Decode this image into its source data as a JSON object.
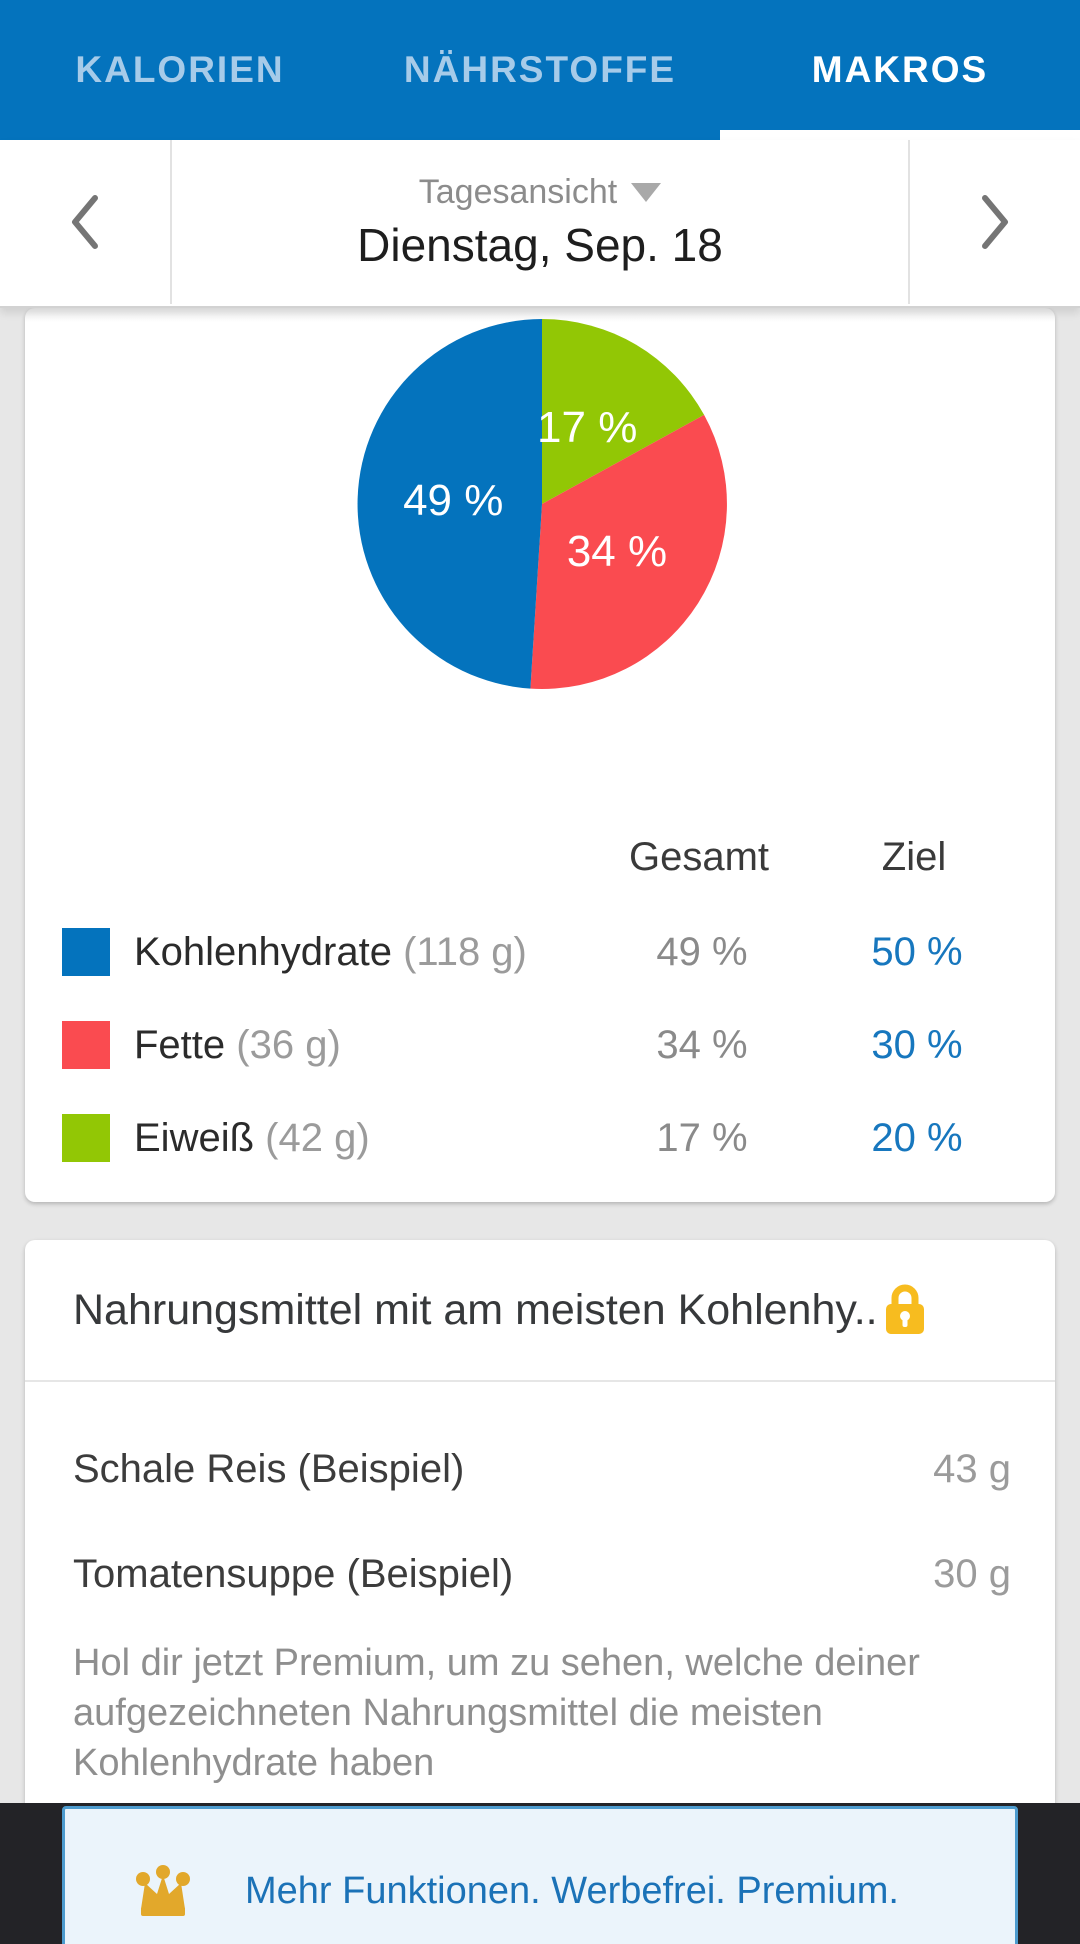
{
  "tabs": {
    "items": [
      {
        "label": "KALORIEN",
        "active": false
      },
      {
        "label": "NÄHRSTOFFE",
        "active": false
      },
      {
        "label": "MAKROS",
        "active": true
      }
    ]
  },
  "date_nav": {
    "view_label": "Tagesansicht",
    "date_label": "Dienstag, Sep. 18"
  },
  "chart_data": {
    "type": "pie",
    "title": "",
    "start_angle_deg": 0,
    "direction": "clockwise",
    "legend_position": "below",
    "slices": [
      {
        "name": "Eiweiß",
        "value": 17,
        "display": "17 %",
        "color": "#92C705"
      },
      {
        "name": "Fette",
        "value": 34,
        "display": "34 %",
        "color": "#FA4B50"
      },
      {
        "name": "Kohlenhydrate",
        "value": 49,
        "display": "49 %",
        "color": "#0473BD"
      }
    ]
  },
  "macros_table": {
    "headers": {
      "total": "Gesamt",
      "goal": "Ziel"
    },
    "rows": [
      {
        "name": "Kohlenhydrate",
        "amount": "(118 g)",
        "total": "49 %",
        "goal": "50 %",
        "color": "#0473BD"
      },
      {
        "name": "Fette",
        "amount": "(36 g)",
        "total": "34 %",
        "goal": "30 %",
        "color": "#FA4B50"
      },
      {
        "name": "Eiweiß",
        "amount": "(42 g)",
        "total": "17 %",
        "goal": "20 %",
        "color": "#92C705"
      }
    ]
  },
  "top_foods": {
    "title": "Nahrungsmittel mit am meisten Kohlenhy..",
    "items": [
      {
        "name": "Schale Reis (Beispiel)",
        "value": "43 g"
      },
      {
        "name": "Tomatensuppe (Beispiel)",
        "value": "30 g"
      }
    ],
    "upsell_text": "Hol dir jetzt Premium, um zu sehen, welche deiner aufgezeichneten Nahrungsmittel die meisten Kohlenhydrate haben"
  },
  "premium_banner": {
    "text": "Mehr Funktionen. Werbefrei. Premium.",
    "text_color": "#1B72B7",
    "background": "#EBF4FB",
    "crown_color": "#E2A82B",
    "lock_color": "#F7BC1F"
  },
  "theme": {
    "app_blue": "#0473BD",
    "inactive_tab": "#A6CBE9",
    "goal_blue": "#1777BE",
    "page_background": "#E7E7E7",
    "ad_background": "#232327"
  }
}
